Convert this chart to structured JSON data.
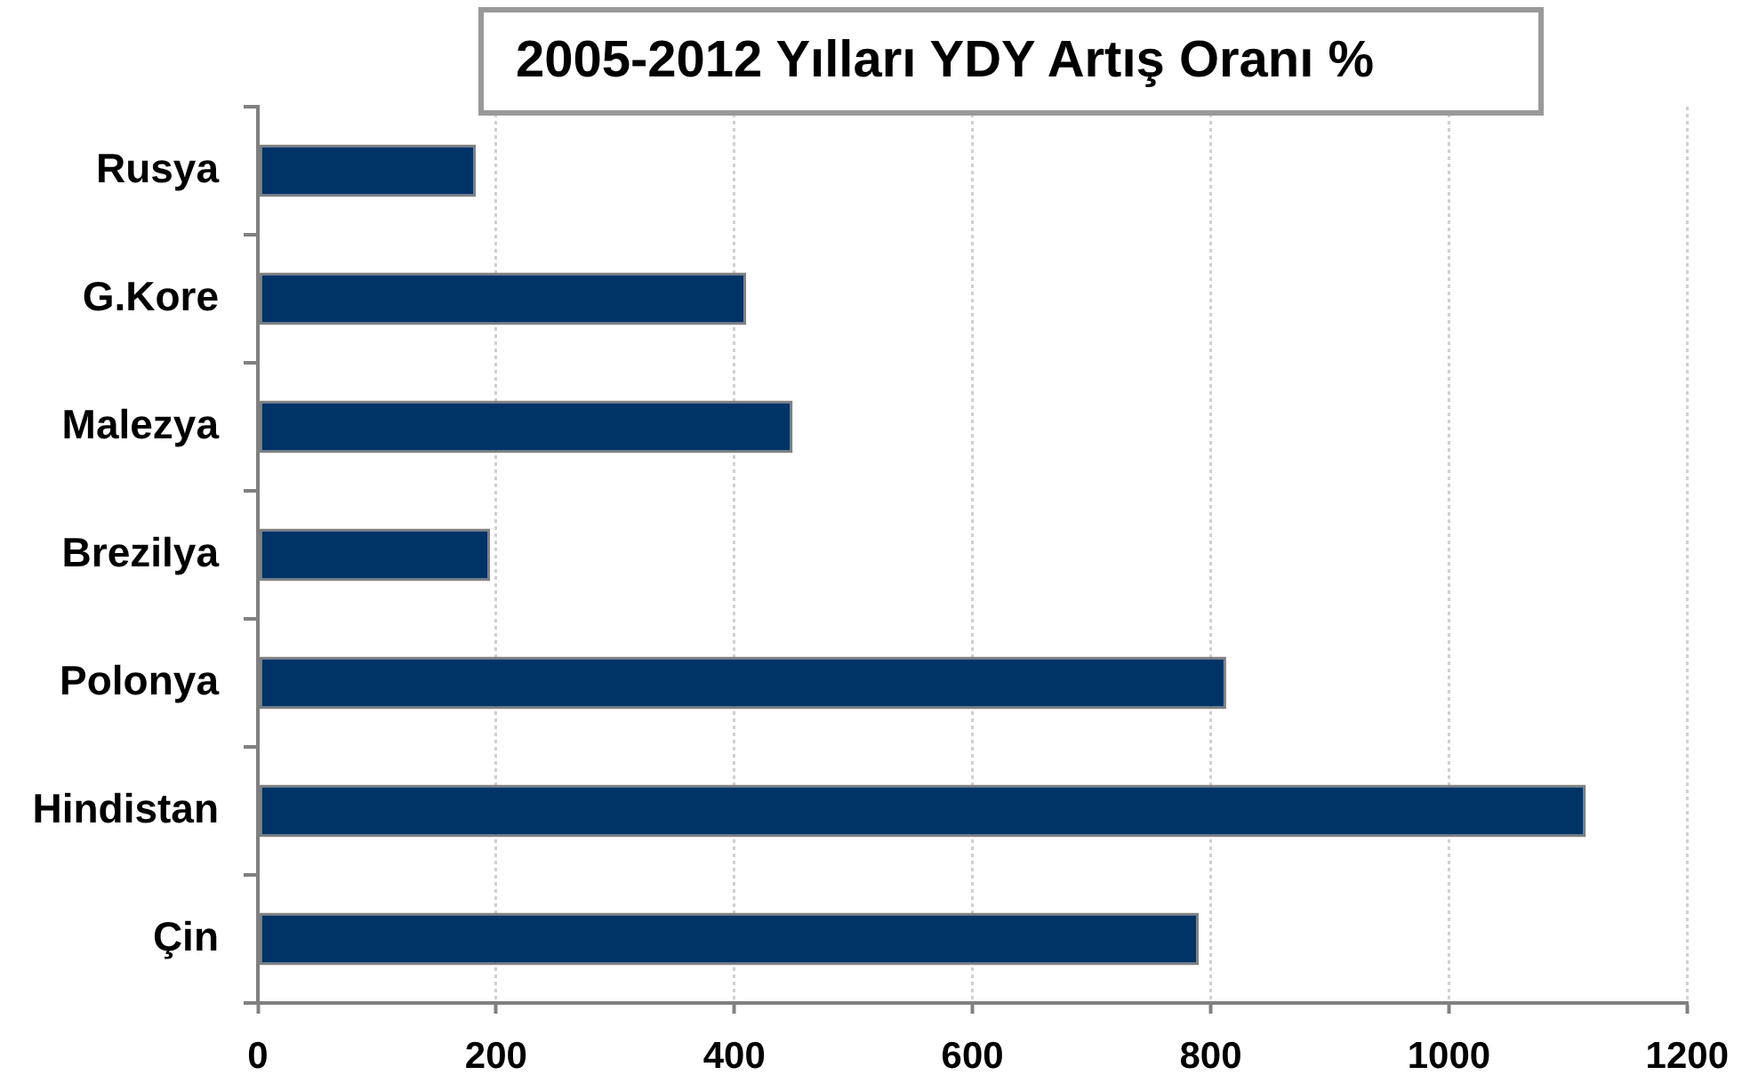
{
  "chart_data": {
    "type": "bar",
    "title": "2005-2012 Yılları YDY Artış Oranı %",
    "orientation": "horizontal",
    "categories": [
      "Rusya",
      "G.Kore",
      "Malezya",
      "Brezilya",
      "Polonya",
      "Hindistan",
      "Çin"
    ],
    "values": [
      183,
      410,
      449,
      195,
      813,
      1115,
      790
    ],
    "color": "#003366",
    "xlim": [
      0,
      1200
    ],
    "xticks": [
      0,
      200,
      400,
      600,
      800,
      1000,
      1200
    ],
    "grid": "x"
  }
}
